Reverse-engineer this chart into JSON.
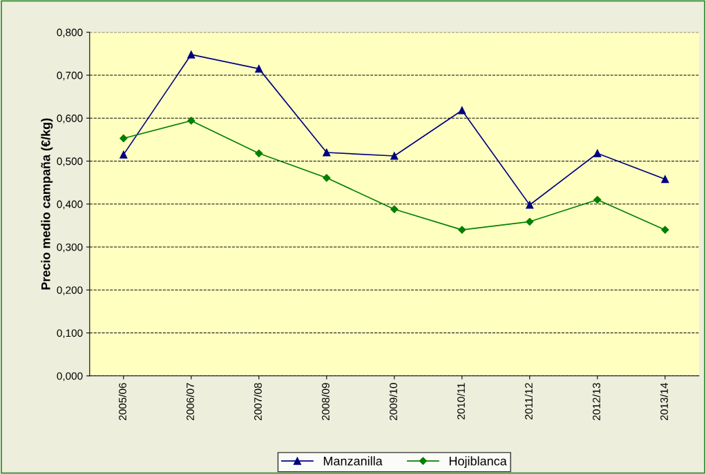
{
  "chart_data": {
    "type": "line",
    "ylabel": "Precio medio campaña (€/kg)",
    "categories": [
      "2005/06",
      "2006/07",
      "2007/08",
      "2008/09",
      "2009/10",
      "2010/11",
      "2011/12",
      "2012/13",
      "2013/14"
    ],
    "series": [
      {
        "name": "Manzanilla",
        "color": "#000080",
        "marker": "triangle",
        "values": [
          0.515,
          0.748,
          0.715,
          0.52,
          0.512,
          0.618,
          0.398,
          0.518,
          0.458
        ]
      },
      {
        "name": "Hojiblanca",
        "color": "#008000",
        "marker": "diamond",
        "values": [
          0.553,
          0.594,
          0.518,
          0.461,
          0.388,
          0.34,
          0.359,
          0.41,
          0.34
        ]
      }
    ],
    "ylim": [
      0,
      0.8
    ],
    "yticks": [
      {
        "value": 0,
        "label": "0,000"
      },
      {
        "value": 0.1,
        "label": "0,100"
      },
      {
        "value": 0.2,
        "label": "0,200"
      },
      {
        "value": 0.3,
        "label": "0,300"
      },
      {
        "value": 0.4,
        "label": "0,400"
      },
      {
        "value": 0.5,
        "label": "0,500"
      },
      {
        "value": 0.6,
        "label": "0,600"
      },
      {
        "value": 0.7,
        "label": "0,700"
      },
      {
        "value": 0.8,
        "label": "0,800"
      }
    ],
    "grid": "y",
    "legend": "bottom",
    "line_style": "solid"
  }
}
